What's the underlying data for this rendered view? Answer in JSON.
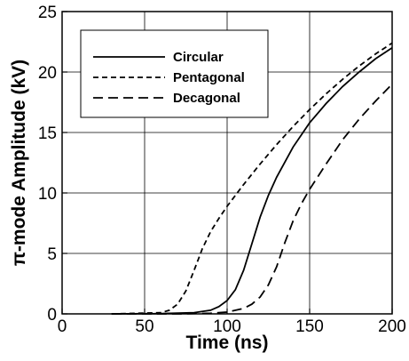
{
  "chart_data": {
    "type": "line",
    "title": "",
    "xlabel": "Time (ns)",
    "ylabel": "π-mode Amplitude (kV)",
    "xlim": [
      0,
      200
    ],
    "ylim": [
      0,
      25
    ],
    "xticks": [
      "0",
      "50",
      "100",
      "150",
      "200"
    ],
    "yticks": [
      "0",
      "5",
      "10",
      "15",
      "20",
      "25"
    ],
    "grid": true,
    "legend_position": "top-left",
    "series": [
      {
        "name": "Circular",
        "dash": "solid",
        "x": [
          30,
          60,
          80,
          90,
          95,
          100,
          105,
          110,
          115,
          120,
          125,
          130,
          140,
          150,
          160,
          170,
          180,
          190,
          200
        ],
        "y": [
          0,
          0.02,
          0.1,
          0.3,
          0.6,
          1.1,
          2.0,
          3.6,
          5.8,
          8.0,
          9.8,
          11.3,
          13.8,
          15.8,
          17.4,
          18.8,
          20.0,
          21.1,
          22.0
        ]
      },
      {
        "name": "Pentagonal",
        "dash": "short",
        "x": [
          30,
          60,
          65,
          70,
          75,
          80,
          85,
          90,
          95,
          100,
          110,
          120,
          130,
          140,
          150,
          160,
          170,
          180,
          190,
          200
        ],
        "y": [
          0,
          0.1,
          0.3,
          0.8,
          1.9,
          3.6,
          5.4,
          6.8,
          7.9,
          8.9,
          10.7,
          12.4,
          14.0,
          15.5,
          16.9,
          18.2,
          19.4,
          20.5,
          21.5,
          22.4
        ]
      },
      {
        "name": "Decagonal",
        "dash": "long",
        "x": [
          30,
          70,
          90,
          100,
          110,
          115,
          120,
          125,
          130,
          135,
          140,
          145,
          150,
          160,
          170,
          180,
          190,
          200
        ],
        "y": [
          0,
          0,
          0.05,
          0.15,
          0.45,
          0.8,
          1.4,
          2.4,
          3.9,
          5.9,
          7.7,
          9.1,
          10.3,
          12.4,
          14.4,
          16.1,
          17.6,
          19.0
        ]
      }
    ]
  }
}
